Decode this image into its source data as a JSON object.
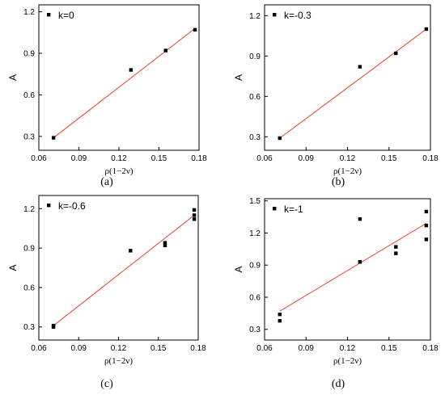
{
  "chart_data": [
    {
      "type": "scatter",
      "panel_label": "(a)",
      "legend": "k=0",
      "xlabel": "ρ(1−2ν)",
      "ylabel": "A",
      "xlim": [
        0.06,
        0.18
      ],
      "ylim": [
        0.2,
        1.25
      ],
      "xticks": [
        "0.06",
        "0.09",
        "0.12",
        "0.15",
        "0.18"
      ],
      "xtick_values": [
        0.06,
        0.09,
        0.12,
        0.15,
        0.18
      ],
      "yticks": [
        "0.3",
        "0.6",
        "0.9",
        "1.2"
      ],
      "ytick_values": [
        0.3,
        0.6,
        0.9,
        1.2
      ],
      "points": [
        [
          0.071,
          0.29
        ],
        [
          0.129,
          0.78
        ],
        [
          0.155,
          0.92
        ],
        [
          0.177,
          1.07
        ]
      ],
      "fit_line": [
        [
          0.071,
          0.29
        ],
        [
          0.177,
          1.08
        ]
      ]
    },
    {
      "type": "scatter",
      "panel_label": "(b)",
      "legend": "k=-0.3",
      "xlabel": "ρ(1−2ν)",
      "ylabel": "A",
      "xlim": [
        0.06,
        0.18
      ],
      "ylim": [
        0.2,
        1.28
      ],
      "xticks": [
        "0.06",
        "0.09",
        "0.12",
        "0.15",
        "0.18"
      ],
      "xtick_values": [
        0.06,
        0.09,
        0.12,
        0.15,
        0.18
      ],
      "yticks": [
        "0.3",
        "0.6",
        "0.9",
        "1.2"
      ],
      "ytick_values": [
        0.3,
        0.6,
        0.9,
        1.2
      ],
      "points": [
        [
          0.071,
          0.29
        ],
        [
          0.129,
          0.82
        ],
        [
          0.155,
          0.92
        ],
        [
          0.177,
          1.1
        ]
      ],
      "fit_line": [
        [
          0.071,
          0.29
        ],
        [
          0.177,
          1.1
        ]
      ]
    },
    {
      "type": "scatter",
      "panel_label": "(c)",
      "legend": "k=-0.6",
      "xlabel": "ρ(1−2ν)",
      "ylabel": "A",
      "xlim": [
        0.06,
        0.18
      ],
      "ylim": [
        0.2,
        1.3
      ],
      "xticks": [
        "0.06",
        "0.09",
        "0.12",
        "0.15",
        "0.18"
      ],
      "xtick_values": [
        0.06,
        0.09,
        0.12,
        0.15,
        0.18
      ],
      "yticks": [
        "0.3",
        "0.6",
        "0.9",
        "1.2"
      ],
      "ytick_values": [
        0.3,
        0.6,
        0.9,
        1.2
      ],
      "points": [
        [
          0.071,
          0.3
        ],
        [
          0.071,
          0.31
        ],
        [
          0.129,
          0.88
        ],
        [
          0.155,
          0.92
        ],
        [
          0.155,
          0.94
        ],
        [
          0.177,
          1.12
        ],
        [
          0.177,
          1.15
        ],
        [
          0.177,
          1.19
        ]
      ],
      "fit_line": [
        [
          0.071,
          0.31
        ],
        [
          0.177,
          1.15
        ]
      ]
    },
    {
      "type": "scatter",
      "panel_label": "(d)",
      "legend": "k=-1",
      "xlabel": "ρ(1−2ν)",
      "ylabel": "A",
      "xlim": [
        0.06,
        0.18
      ],
      "ylim": [
        0.2,
        1.52
      ],
      "xticks": [
        "0.06",
        "0.09",
        "0.12",
        "0.15",
        "0.18"
      ],
      "xtick_values": [
        0.06,
        0.09,
        0.12,
        0.15,
        0.18
      ],
      "yticks": [
        "0.3",
        "0.6",
        "0.9",
        "1.2",
        "1.5"
      ],
      "ytick_values": [
        0.3,
        0.6,
        0.9,
        1.2,
        1.5
      ],
      "points": [
        [
          0.071,
          0.38
        ],
        [
          0.071,
          0.44
        ],
        [
          0.129,
          0.93
        ],
        [
          0.129,
          1.33
        ],
        [
          0.155,
          1.01
        ],
        [
          0.155,
          1.07
        ],
        [
          0.177,
          1.14
        ],
        [
          0.177,
          1.27
        ],
        [
          0.177,
          1.4
        ]
      ],
      "fit_line": [
        [
          0.071,
          0.47
        ],
        [
          0.177,
          1.29
        ]
      ]
    }
  ],
  "colors": {
    "fit_line": "#e8402b",
    "points": "#000000",
    "axes": "#000000"
  }
}
